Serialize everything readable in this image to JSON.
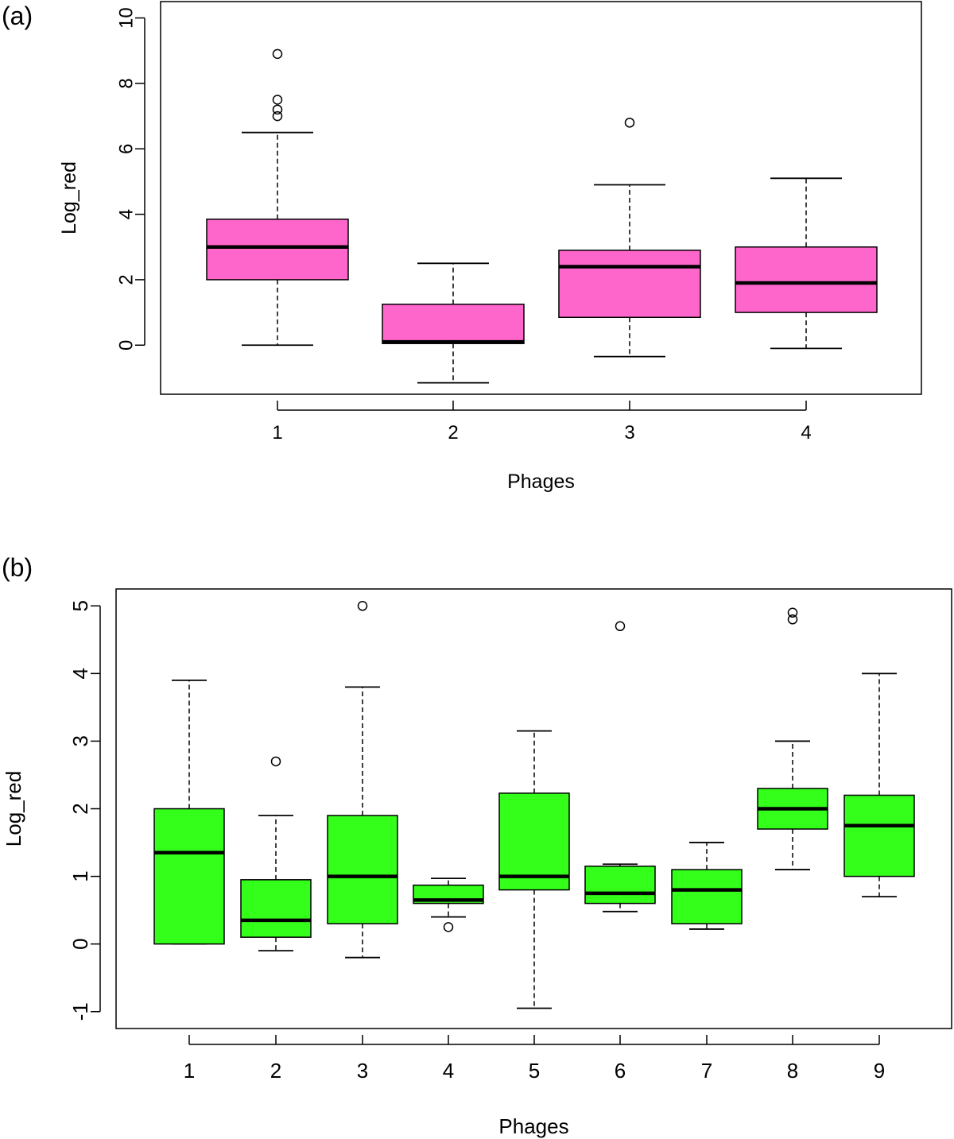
{
  "chart_data": [
    {
      "type": "boxplot",
      "panel_label": "(a)",
      "xlabel": "Phages",
      "ylabel": "Log_red",
      "ylim": [
        -1.5,
        10.5
      ],
      "yticks": [
        0,
        2,
        4,
        6,
        8,
        10
      ],
      "box_color": "#ff66cc",
      "categories": [
        "1",
        "2",
        "3",
        "4"
      ],
      "boxes": [
        {
          "category": "1",
          "whisker_low": 0,
          "q1": 2.0,
          "median": 3.0,
          "q3": 3.85,
          "whisker_high": 6.5,
          "outliers": [
            7.0,
            7.2,
            7.5,
            8.9
          ]
        },
        {
          "category": "2",
          "whisker_low": -1.15,
          "q1": 0.05,
          "median": 0.1,
          "q3": 1.25,
          "whisker_high": 2.5,
          "outliers": []
        },
        {
          "category": "3",
          "whisker_low": -0.35,
          "q1": 0.85,
          "median": 2.4,
          "q3": 2.9,
          "whisker_high": 4.9,
          "outliers": [
            6.8
          ]
        },
        {
          "category": "4",
          "whisker_low": -0.1,
          "q1": 1.0,
          "median": 1.9,
          "q3": 3.0,
          "whisker_high": 5.1,
          "outliers": []
        }
      ]
    },
    {
      "type": "boxplot",
      "panel_label": "(b)",
      "xlabel": "Phages",
      "ylabel": "Log_red",
      "ylim": [
        -1.25,
        5.25
      ],
      "yticks": [
        -1,
        0,
        1,
        2,
        3,
        4,
        5
      ],
      "box_color": "#33ff1a",
      "categories": [
        "1",
        "2",
        "3",
        "4",
        "5",
        "6",
        "7",
        "8",
        "9"
      ],
      "boxes": [
        {
          "category": "1",
          "whisker_low": 0.0,
          "q1": 0.0,
          "median": 1.35,
          "q3": 2.0,
          "whisker_high": 3.9,
          "outliers": []
        },
        {
          "category": "2",
          "whisker_low": -0.1,
          "q1": 0.1,
          "median": 0.35,
          "q3": 0.95,
          "whisker_high": 1.9,
          "outliers": [
            2.7
          ]
        },
        {
          "category": "3",
          "whisker_low": -0.2,
          "q1": 0.3,
          "median": 1.0,
          "q3": 1.9,
          "whisker_high": 3.8,
          "outliers": [
            5.0
          ]
        },
        {
          "category": "4",
          "whisker_low": 0.4,
          "q1": 0.6,
          "median": 0.65,
          "q3": 0.87,
          "whisker_high": 0.97,
          "outliers": [
            0.25
          ]
        },
        {
          "category": "5",
          "whisker_low": -0.95,
          "q1": 0.8,
          "median": 1.0,
          "q3": 2.23,
          "whisker_high": 3.15,
          "outliers": []
        },
        {
          "category": "6",
          "whisker_low": 0.48,
          "q1": 0.6,
          "median": 0.75,
          "q3": 1.15,
          "whisker_high": 1.18,
          "outliers": [
            4.7
          ]
        },
        {
          "category": "7",
          "whisker_low": 0.22,
          "q1": 0.3,
          "median": 0.8,
          "q3": 1.1,
          "whisker_high": 1.5,
          "outliers": []
        },
        {
          "category": "8",
          "whisker_low": 1.1,
          "q1": 1.7,
          "median": 2.0,
          "q3": 2.3,
          "whisker_high": 3.0,
          "outliers": [
            4.8,
            4.9
          ]
        },
        {
          "category": "9",
          "whisker_low": 0.7,
          "q1": 1.0,
          "median": 1.75,
          "q3": 2.2,
          "whisker_high": 4.0,
          "outliers": []
        }
      ]
    }
  ]
}
